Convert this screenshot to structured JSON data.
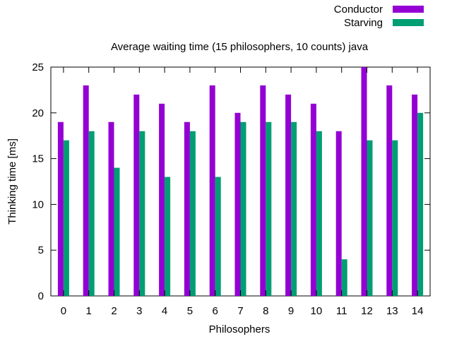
{
  "chart_data": {
    "type": "bar",
    "title": "Average waiting time (15 philosophers, 10 counts) java",
    "xlabel": "Philosophers",
    "ylabel": "Thinking time [ms]",
    "ylim": [
      0,
      25
    ],
    "yticks": [
      0,
      5,
      10,
      15,
      20,
      25
    ],
    "categories": [
      "0",
      "1",
      "2",
      "3",
      "4",
      "5",
      "6",
      "7",
      "8",
      "9",
      "10",
      "11",
      "12",
      "13",
      "14"
    ],
    "legend_position": "top-right",
    "grid": false,
    "series": [
      {
        "name": "Conductor",
        "color": "#9400d3",
        "values": [
          19,
          23,
          19,
          22,
          21,
          19,
          23,
          20,
          23,
          22,
          21,
          18,
          25,
          23,
          22
        ]
      },
      {
        "name": "Starving",
        "color": "#009e73",
        "values": [
          17,
          18,
          14,
          18,
          13,
          18,
          13,
          19,
          19,
          19,
          18,
          4,
          17,
          17,
          20
        ]
      }
    ]
  }
}
